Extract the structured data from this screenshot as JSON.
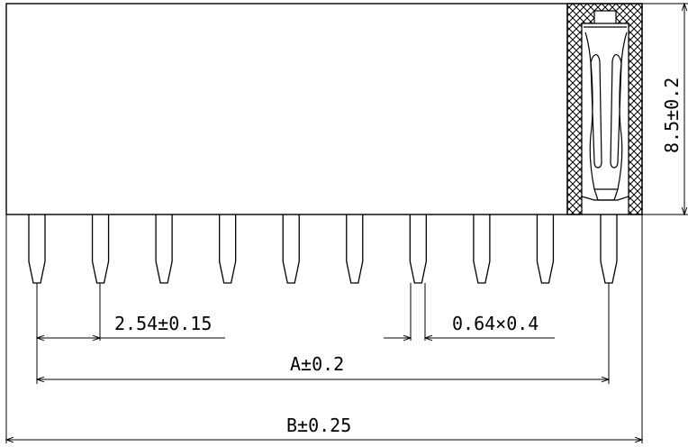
{
  "drawing": {
    "pin_count": 10,
    "labels": {
      "pitch": "2.54±0.15",
      "pin_size": "0.64×0.4",
      "dim_a": "A±0.2",
      "dim_b": "B±0.25",
      "height": "8.5±0.2"
    },
    "colors": {
      "line": "#000000",
      "background": "#ffffff"
    }
  }
}
